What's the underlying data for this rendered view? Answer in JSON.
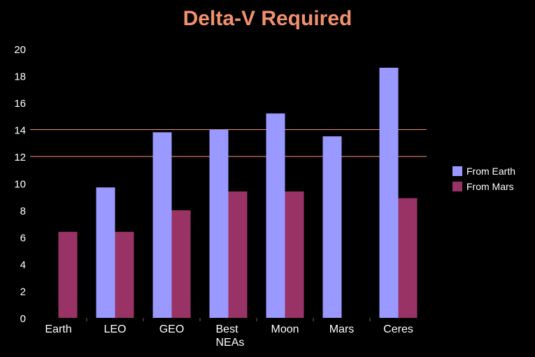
{
  "colors": {
    "background": "#000000",
    "title": "#f2906e",
    "text": "#ffffff",
    "from_earth": "#9999ff",
    "from_mars": "#993366",
    "reference_line": "#f2906e"
  },
  "chart_data": {
    "type": "bar",
    "title": "Delta-V Required",
    "xlabel": "",
    "ylabel": "",
    "categories": [
      "Earth",
      "LEO",
      "GEO",
      "Best NEAs",
      "Moon",
      "Mars",
      "Ceres"
    ],
    "series": [
      {
        "name": "From Earth",
        "values": [
          0,
          9.7,
          13.8,
          14.0,
          15.2,
          13.5,
          18.6
        ]
      },
      {
        "name": "From Mars",
        "values": [
          6.4,
          6.4,
          8.0,
          9.4,
          9.4,
          0,
          8.9
        ]
      }
    ],
    "ylim": [
      0,
      20
    ],
    "yticks": [
      0,
      2,
      4,
      6,
      8,
      10,
      12,
      14,
      16,
      18,
      20
    ],
    "reference_lines": [
      12,
      14
    ],
    "grid": false,
    "legend_position": "right"
  }
}
